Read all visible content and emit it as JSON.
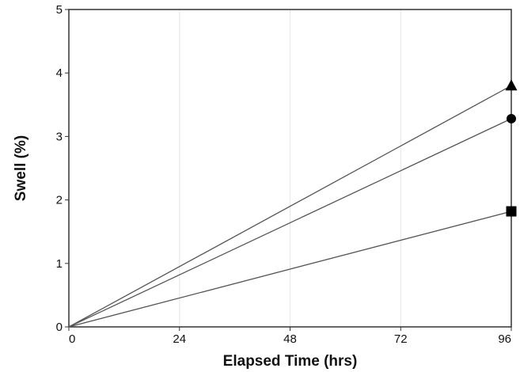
{
  "chart_data": {
    "type": "line",
    "title": "",
    "xlabel": "Elapsed Time (hrs)",
    "ylabel": "Swell (%)",
    "xlim": [
      0,
      96
    ],
    "ylim": [
      0,
      5
    ],
    "xticks": [
      0,
      24,
      48,
      72,
      96
    ],
    "yticks": [
      0,
      1,
      2,
      3,
      4,
      5
    ],
    "grid": true,
    "legend": "none",
    "line_color": "#555555",
    "marker_color": "#000000",
    "grid_color": "#e6e6e6",
    "series": [
      {
        "marker": "triangle",
        "x": [
          0,
          96
        ],
        "y": [
          0,
          3.8
        ]
      },
      {
        "marker": "circle",
        "x": [
          0,
          96
        ],
        "y": [
          0,
          3.28
        ]
      },
      {
        "marker": "square",
        "x": [
          0,
          96
        ],
        "y": [
          0,
          1.82
        ]
      }
    ]
  }
}
